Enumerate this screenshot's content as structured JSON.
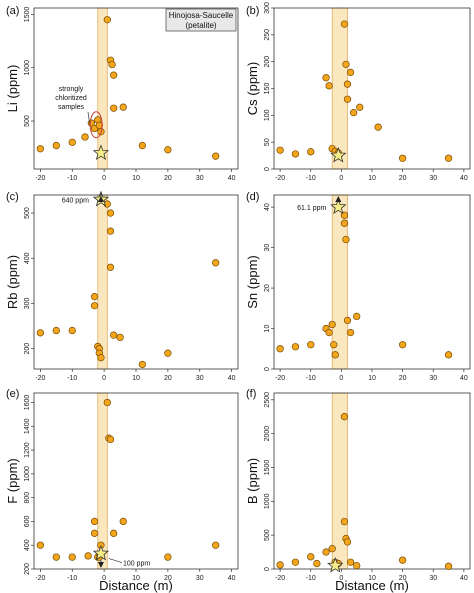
{
  "figure_title": [
    "Hinojosa-Saucelle",
    "(petalite)"
  ],
  "x_axis_label": "Distance (m)",
  "colors": {
    "point_fill": "#f3a51c",
    "point_stroke": "#7a4c00",
    "band_fill": "#fbe7be",
    "band_stroke": "#e0b060",
    "star_fill": "#f6ec88"
  },
  "chart_data": [
    {
      "panel": "(a)",
      "type": "scatter",
      "xlabel": "Distance (m)",
      "ylabel": "Li (ppm)",
      "xlim": [
        -22,
        42
      ],
      "ylim": [
        50,
        1560
      ],
      "xticks": [
        -20,
        -10,
        0,
        10,
        20,
        30,
        40
      ],
      "yticks": [
        500,
        1000,
        1500
      ],
      "band": [
        -2,
        1
      ],
      "points": [
        [
          -20,
          240
        ],
        [
          -15,
          270
        ],
        [
          -10,
          300
        ],
        [
          -6,
          350
        ],
        [
          -4,
          480
        ],
        [
          -3,
          430
        ],
        [
          -2,
          510
        ],
        [
          -1.5,
          460
        ],
        [
          -1,
          400
        ],
        [
          1,
          1450
        ],
        [
          2,
          1070
        ],
        [
          2.5,
          1030
        ],
        [
          3,
          930
        ],
        [
          3,
          620
        ],
        [
          6,
          630
        ],
        [
          12,
          270
        ],
        [
          20,
          230
        ],
        [
          35,
          170
        ]
      ],
      "star": [
        -1,
        200
      ],
      "annotation": {
        "text": [
          "strongly",
          "chloritized",
          "samples"
        ]
      }
    },
    {
      "panel": "(b)",
      "type": "scatter",
      "xlabel": "Distance (m)",
      "ylabel": "Cs (ppm)",
      "xlim": [
        -22,
        42
      ],
      "ylim": [
        0,
        300
      ],
      "xticks": [
        -20,
        -10,
        0,
        10,
        20,
        30,
        40
      ],
      "yticks": [
        0,
        50,
        100,
        150,
        200,
        250,
        300
      ],
      "band": [
        -3,
        2
      ],
      "points": [
        [
          -20,
          35
        ],
        [
          -15,
          28
        ],
        [
          -10,
          32
        ],
        [
          -5,
          170
        ],
        [
          -4,
          155
        ],
        [
          -3,
          38
        ],
        [
          -2,
          33
        ],
        [
          -1,
          30
        ],
        [
          1,
          270
        ],
        [
          1.5,
          195
        ],
        [
          2,
          158
        ],
        [
          2,
          130
        ],
        [
          3,
          180
        ],
        [
          4,
          105
        ],
        [
          6,
          115
        ],
        [
          12,
          78
        ],
        [
          20,
          20
        ],
        [
          35,
          20
        ]
      ],
      "star": [
        -1,
        25
      ]
    },
    {
      "panel": "(c)",
      "type": "scatter",
      "xlabel": "Distance (m)",
      "ylabel": "Rb (ppm)",
      "xlim": [
        -22,
        42
      ],
      "ylim": [
        155,
        540
      ],
      "xticks": [
        -20,
        -10,
        0,
        10,
        20,
        30,
        40
      ],
      "yticks": [
        200,
        300,
        400,
        500
      ],
      "band": [
        -2,
        1
      ],
      "points": [
        [
          -20,
          235
        ],
        [
          -15,
          240
        ],
        [
          -10,
          240
        ],
        [
          -3,
          315
        ],
        [
          -3,
          295
        ],
        [
          -2,
          205
        ],
        [
          -1.5,
          200
        ],
        [
          -1.5,
          190
        ],
        [
          -1,
          180
        ],
        [
          1,
          520
        ],
        [
          2,
          500
        ],
        [
          2,
          460
        ],
        [
          2,
          380
        ],
        [
          3,
          230
        ],
        [
          5,
          225
        ],
        [
          12,
          165
        ],
        [
          20,
          190
        ],
        [
          35,
          390
        ]
      ],
      "star": [
        -1,
        530
      ],
      "annotation": {
        "text": "640 ppm"
      }
    },
    {
      "panel": "(d)",
      "type": "scatter",
      "xlabel": "Distance (m)",
      "ylabel": "Sn (ppm)",
      "xlim": [
        -22,
        42
      ],
      "ylim": [
        0,
        43
      ],
      "xticks": [
        -20,
        -10,
        0,
        10,
        20,
        30,
        40
      ],
      "yticks": [
        0,
        10,
        20,
        30,
        40
      ],
      "band": [
        -3,
        2
      ],
      "points": [
        [
          -20,
          5
        ],
        [
          -15,
          5.5
        ],
        [
          -10,
          6
        ],
        [
          -5,
          10
        ],
        [
          -4,
          9
        ],
        [
          -3,
          11
        ],
        [
          -2.5,
          6
        ],
        [
          -2,
          3.5
        ],
        [
          1,
          38
        ],
        [
          1,
          36
        ],
        [
          1.5,
          32
        ],
        [
          2,
          12
        ],
        [
          3,
          9
        ],
        [
          5,
          13
        ],
        [
          20,
          6
        ],
        [
          35,
          3.5
        ]
      ],
      "star": [
        -1,
        40
      ],
      "annotation": {
        "text": "61.1 ppm"
      }
    },
    {
      "panel": "(e)",
      "type": "scatter",
      "xlabel": "Distance (m)",
      "ylabel": "F (ppm)",
      "xlim": [
        -22,
        42
      ],
      "ylim": [
        200,
        1680
      ],
      "xticks": [
        -20,
        -10,
        0,
        10,
        20,
        30,
        40
      ],
      "yticks": [
        200,
        400,
        600,
        800,
        1000,
        1200,
        1400,
        1600
      ],
      "band": [
        -2,
        1
      ],
      "points": [
        [
          -20,
          400
        ],
        [
          -15,
          300
        ],
        [
          -10,
          300
        ],
        [
          -5,
          310
        ],
        [
          -3,
          500
        ],
        [
          -3,
          600
        ],
        [
          -2,
          300
        ],
        [
          -1.5,
          300
        ],
        [
          -1,
          400
        ],
        [
          1,
          1600
        ],
        [
          1.5,
          1300
        ],
        [
          2,
          1290
        ],
        [
          3,
          500
        ],
        [
          6,
          600
        ],
        [
          20,
          300
        ],
        [
          35,
          400
        ]
      ],
      "star": [
        -1,
        330
      ],
      "annotation": {
        "text": "100 ppm"
      }
    },
    {
      "panel": "(f)",
      "type": "scatter",
      "xlabel": "Distance (m)",
      "ylabel": "B (ppm)",
      "xlim": [
        -22,
        42
      ],
      "ylim": [
        0,
        2600
      ],
      "xticks": [
        -20,
        -10,
        0,
        10,
        20,
        30,
        40
      ],
      "yticks": [
        0,
        500,
        1000,
        1500,
        2000,
        2500
      ],
      "band": [
        -3,
        2
      ],
      "points": [
        [
          -20,
          60
        ],
        [
          -15,
          100
        ],
        [
          -10,
          180
        ],
        [
          -8,
          80
        ],
        [
          -5,
          250
        ],
        [
          -3,
          300
        ],
        [
          -2,
          100
        ],
        [
          -1,
          80
        ],
        [
          1,
          2250
        ],
        [
          1,
          700
        ],
        [
          1.5,
          450
        ],
        [
          2,
          400
        ],
        [
          3,
          100
        ],
        [
          5,
          50
        ],
        [
          20,
          130
        ],
        [
          35,
          40
        ]
      ],
      "star": [
        -2,
        50
      ]
    }
  ]
}
